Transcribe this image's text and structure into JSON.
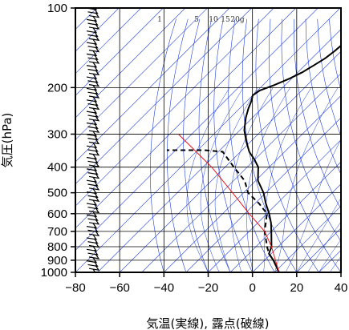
{
  "chart_data": {
    "type": "skew-t",
    "xlabel": "気温(実線), 露点(破線)",
    "ylabel": "気圧(hPa)",
    "x_ticks": [
      -80,
      -60,
      -40,
      -20,
      0,
      20,
      40
    ],
    "x_tick_labels": [
      "−80",
      "−60",
      "−40",
      "−20",
      "0",
      "20",
      "40"
    ],
    "y_ticks": [
      100,
      200,
      300,
      400,
      500,
      600,
      700,
      800,
      900,
      1000
    ],
    "y_tick_labels": [
      "100",
      "200",
      "300",
      "400",
      "500",
      "600",
      "700",
      "800",
      "900",
      "1000"
    ],
    "xlim": [
      -80,
      40
    ],
    "ylim": [
      1000,
      100
    ],
    "y_scale": "log",
    "mixing_ratio_labels": [
      "1",
      "5",
      "10",
      "15",
      "20g"
    ],
    "colors": {
      "temperature": "#000000",
      "dewpoint": "#000000",
      "parcel": "#e8141b",
      "background_lines": "#1f3fd8",
      "grid": "#000000"
    },
    "series": [
      {
        "name": "",
        "style": "solid",
        "points": [
          [
            12,
            1000
          ],
          [
            4,
            900
          ],
          [
            -1,
            850
          ],
          [
            -3,
            800
          ],
          [
            -10,
            700
          ],
          [
            -14,
            650
          ],
          [
            -19,
            600
          ],
          [
            -25,
            550
          ],
          [
            -31,
            500
          ],
          [
            -39,
            450
          ],
          [
            -45,
            400
          ],
          [
            -50,
            375
          ],
          [
            -56,
            350
          ],
          [
            -62,
            320
          ],
          [
            -68,
            290
          ],
          [
            -73,
            260
          ],
          [
            -76,
            240
          ],
          [
            -78,
            225
          ],
          [
            -80,
            214
          ],
          [
            -79,
            205
          ],
          [
            -75,
            196
          ],
          [
            -71,
            185
          ],
          [
            -68,
            175
          ],
          [
            -66,
            165
          ],
          [
            -64,
            155
          ],
          [
            -63,
            145
          ],
          [
            -62,
            130
          ],
          [
            -61,
            120
          ],
          [
            -61,
            115
          ],
          [
            -60,
            110
          ],
          [
            -61,
            104
          ],
          [
            -61,
            100
          ]
        ]
      },
      {
        "name": "",
        "style": "dashed",
        "points": [
          [
            12,
            1000
          ],
          [
            4,
            900
          ],
          [
            -1,
            850
          ],
          [
            -5,
            800
          ],
          [
            -13,
            700
          ],
          [
            -20,
            600
          ],
          [
            -28,
            550
          ],
          [
            -38,
            500
          ],
          [
            -45,
            450
          ],
          [
            -56,
            400
          ],
          [
            -68,
            350
          ],
          [
            -77,
            345
          ],
          [
            -94,
            345
          ]
        ]
      },
      {
        "name": "",
        "style": "solid-red",
        "points": [
          [
            12,
            1000
          ],
          [
            -3,
            800
          ],
          [
            -13,
            700
          ],
          [
            -28,
            600
          ],
          [
            -45,
            500
          ],
          [
            -66,
            400
          ],
          [
            -96,
            300
          ]
        ]
      }
    ],
    "wind_barbs": {
      "pressure_min": 100,
      "pressure_max": 1000,
      "count": 70
    }
  }
}
